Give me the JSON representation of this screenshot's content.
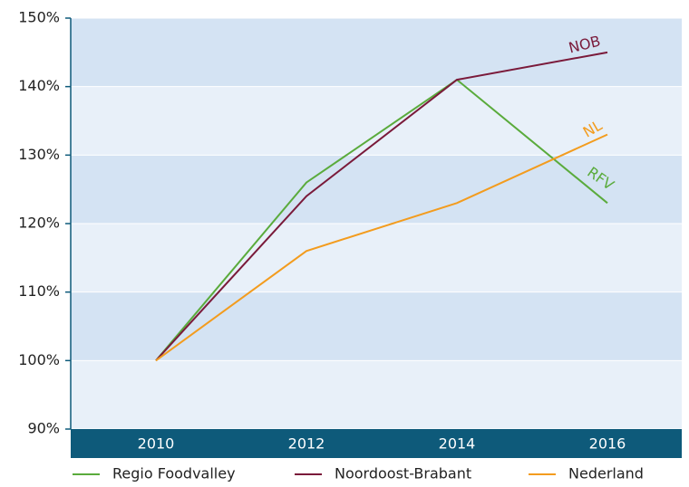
{
  "chart_data": {
    "type": "line",
    "categories": [
      "2010",
      "2012",
      "2014",
      "2016"
    ],
    "series": [
      {
        "name": "Regio Foodvalley",
        "label": "RFV",
        "color": "#5aab3c",
        "values": [
          100,
          126,
          141,
          123
        ]
      },
      {
        "name": "Noordoost-Brabant",
        "label": "NOB",
        "color": "#7a1a3a",
        "values": [
          100,
          124,
          141,
          145
        ]
      },
      {
        "name": "Nederland",
        "label": "NL",
        "color": "#f39c1e",
        "values": [
          100,
          116,
          123,
          133
        ]
      }
    ],
    "ylim": [
      90,
      150
    ],
    "yticks": [
      {
        "value": 90,
        "label": "90%"
      },
      {
        "value": 100,
        "label": "100%"
      },
      {
        "value": 110,
        "label": "110%"
      },
      {
        "value": 120,
        "label": "120%"
      },
      {
        "value": 130,
        "label": "130%"
      },
      {
        "value": 140,
        "label": "140%"
      },
      {
        "value": 150,
        "label": "150%"
      }
    ],
    "grid": true
  }
}
